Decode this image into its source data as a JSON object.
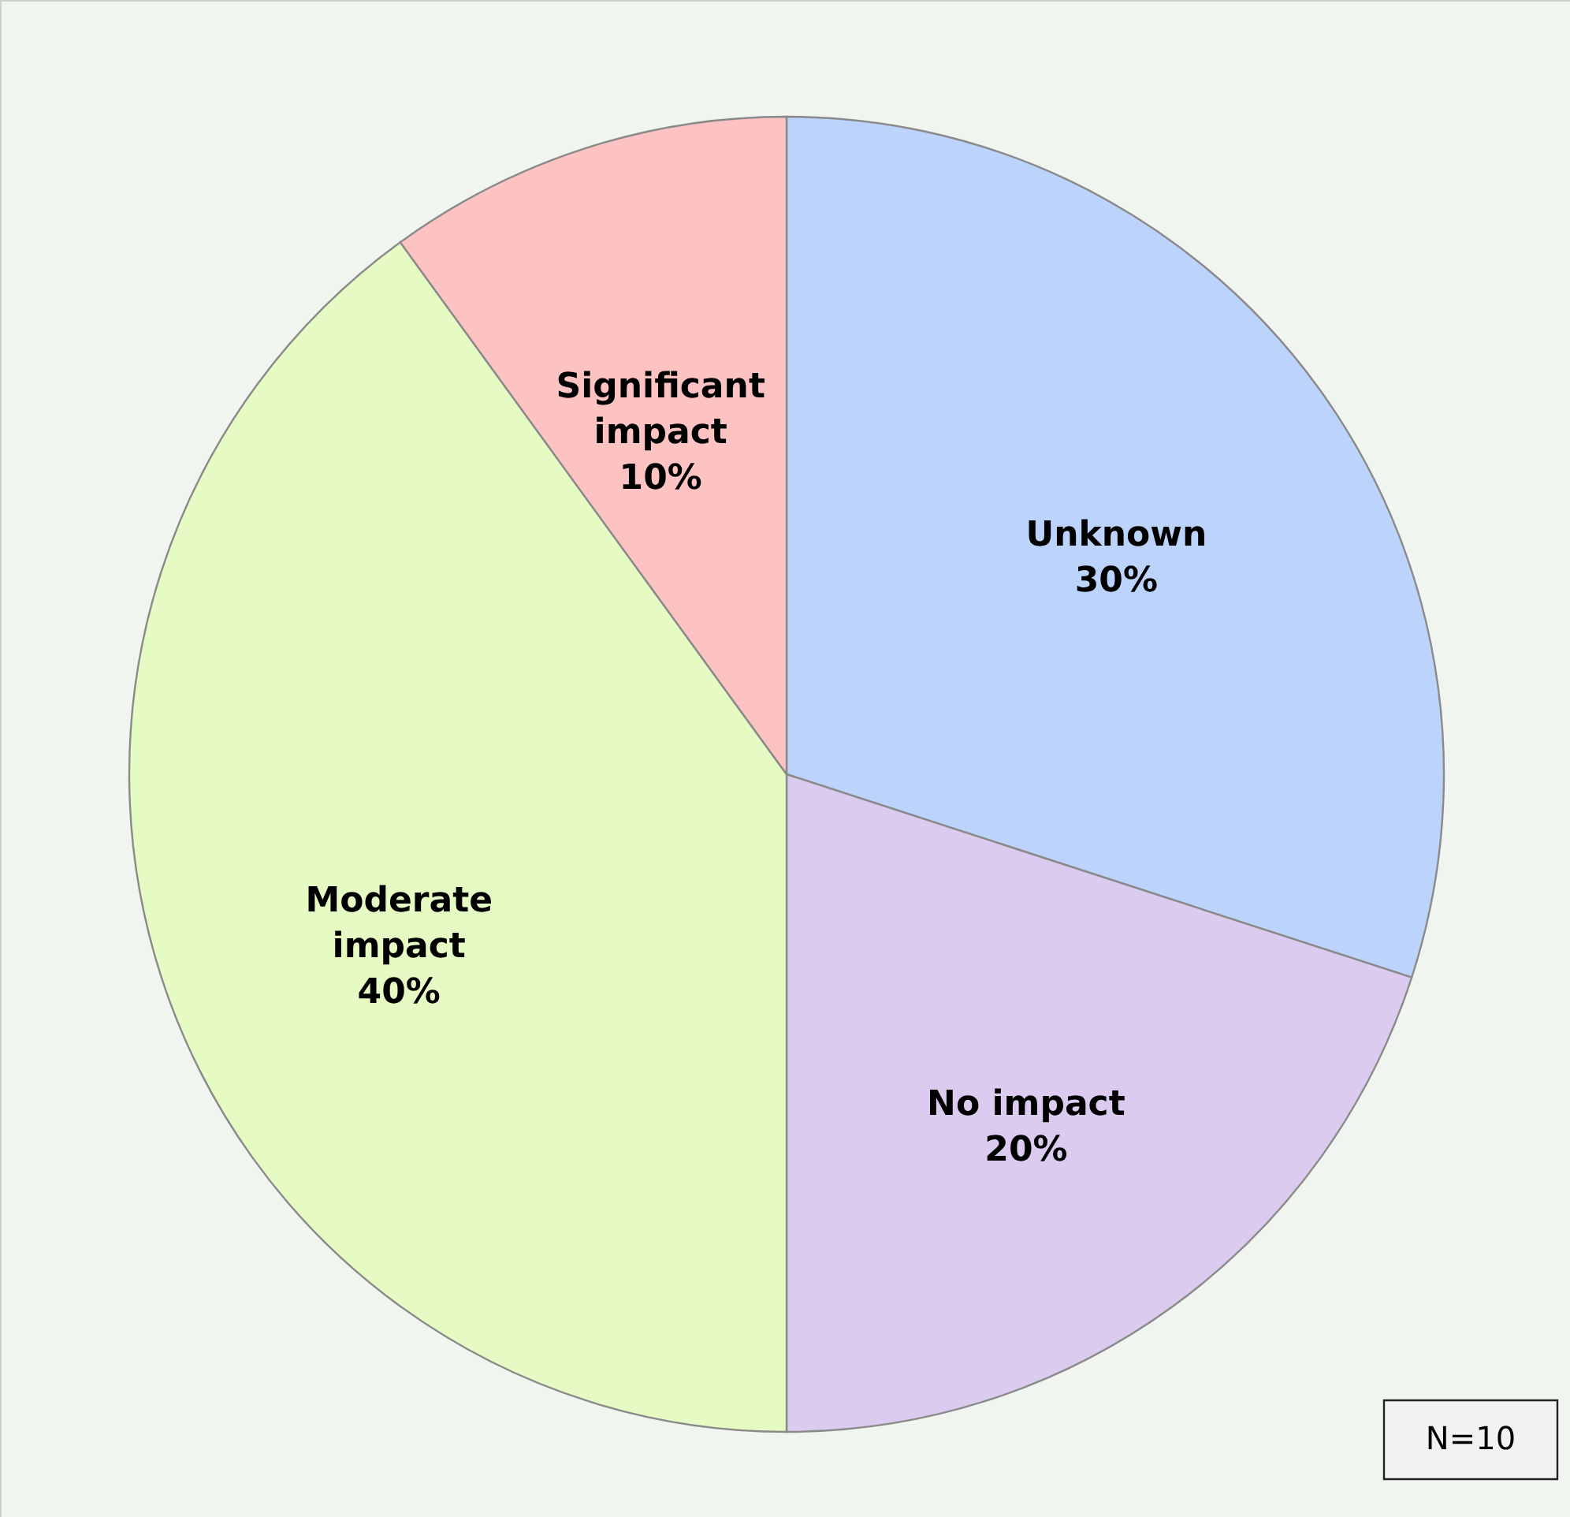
{
  "chart_data": {
    "type": "pie",
    "categories": [
      "Unknown",
      "No impact",
      "Moderate impact",
      "Significant impact"
    ],
    "values": [
      30,
      20,
      40,
      10
    ],
    "value_labels": [
      "30%",
      "20%",
      "40%",
      "10%"
    ],
    "colors": [
      "#bcd3fb",
      "#dacbef",
      "#e6fbc4",
      "#fdc3c3"
    ],
    "annotations": [
      "N=10"
    ]
  }
}
